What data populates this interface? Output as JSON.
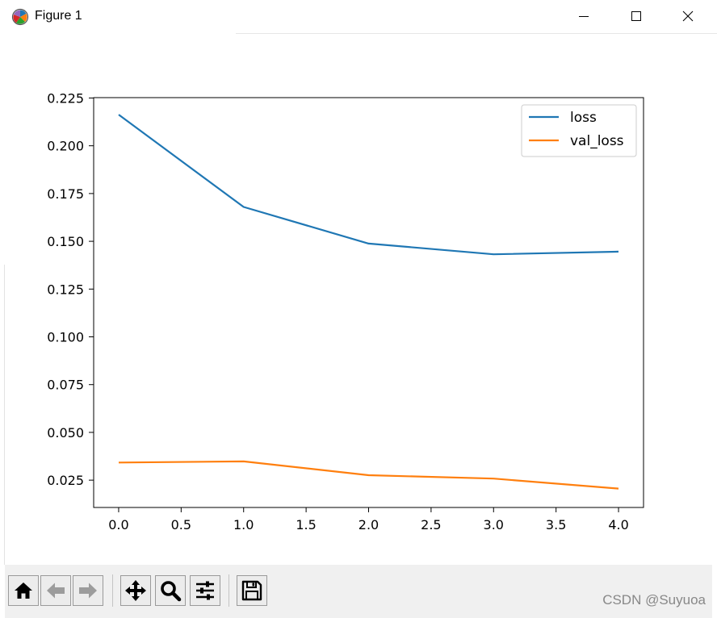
{
  "window": {
    "title": "Figure 1",
    "controls": [
      "minimize",
      "maximize",
      "close"
    ]
  },
  "chart_data": {
    "type": "line",
    "x": [
      0,
      1,
      2,
      3,
      4
    ],
    "series": [
      {
        "name": "loss",
        "values": [
          0.2163,
          0.168,
          0.1488,
          0.1432,
          0.1446
        ],
        "color": "#1f77b4"
      },
      {
        "name": "val_loss",
        "values": [
          0.0342,
          0.0348,
          0.0276,
          0.0258,
          0.0206
        ],
        "color": "#ff7f0e"
      }
    ],
    "xlim": [
      -0.2,
      4.2
    ],
    "ylim": [
      0.0107,
      0.2252
    ],
    "x_ticks": [
      0.0,
      0.5,
      1.0,
      1.5,
      2.0,
      2.5,
      3.0,
      3.5,
      4.0
    ],
    "x_tick_labels": [
      "0.0",
      "0.5",
      "1.0",
      "1.5",
      "2.0",
      "2.5",
      "3.0",
      "3.5",
      "4.0"
    ],
    "y_ticks": [
      0.025,
      0.05,
      0.075,
      0.1,
      0.125,
      0.15,
      0.175,
      0.2,
      0.225
    ],
    "y_tick_labels": [
      "0.025",
      "0.050",
      "0.075",
      "0.100",
      "0.125",
      "0.150",
      "0.175",
      "0.200",
      "0.225"
    ],
    "legend_position": "upper right",
    "grid": false
  },
  "toolbar": {
    "buttons": [
      "home",
      "back",
      "forward",
      "pan",
      "zoom",
      "configure-subplots",
      "save"
    ]
  },
  "watermark": "CSDN @Suyuoa"
}
